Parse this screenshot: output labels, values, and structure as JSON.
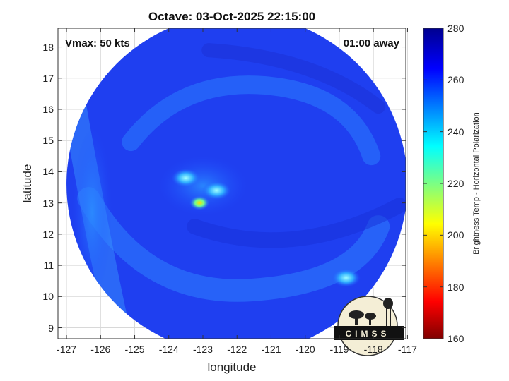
{
  "title": "Octave: 03-Oct-2025 22:15:00",
  "vmax_label": "Vmax: 50 kts",
  "time_label": "01:00 away",
  "xlabel": "longitude",
  "ylabel": "latitude",
  "colorbar_label": "Brightness Temp - Horizontal Polarization",
  "logo_text": "CIMSS",
  "x_ticks": [
    "-127",
    "-126",
    "-125",
    "-124",
    "-123",
    "-122",
    "-121",
    "-120",
    "-119",
    "-118",
    "-117"
  ],
  "y_ticks": [
    "18",
    "17",
    "16",
    "15",
    "14",
    "13",
    "12",
    "11",
    "10",
    "9"
  ],
  "colorbar_ticks": [
    "280",
    "260",
    "240",
    "220",
    "200",
    "180",
    "160"
  ],
  "map": {
    "lon_range": [
      -127.25,
      -117.05
    ],
    "lat_range": [
      8.65,
      18.6
    ],
    "swath_center": [
      -122.0,
      13.6
    ],
    "swath_radius_deg": 5.0,
    "colormap": "jet",
    "value_range": [
      160,
      280
    ],
    "convective_spots": [
      {
        "lon": -123.1,
        "lat": 13.0,
        "value": 205
      },
      {
        "lon": -122.6,
        "lat": 13.4,
        "value": 232
      },
      {
        "lon": -123.5,
        "lat": 13.8,
        "value": 238
      },
      {
        "lon": -118.8,
        "lat": 10.6,
        "value": 236
      }
    ]
  }
}
